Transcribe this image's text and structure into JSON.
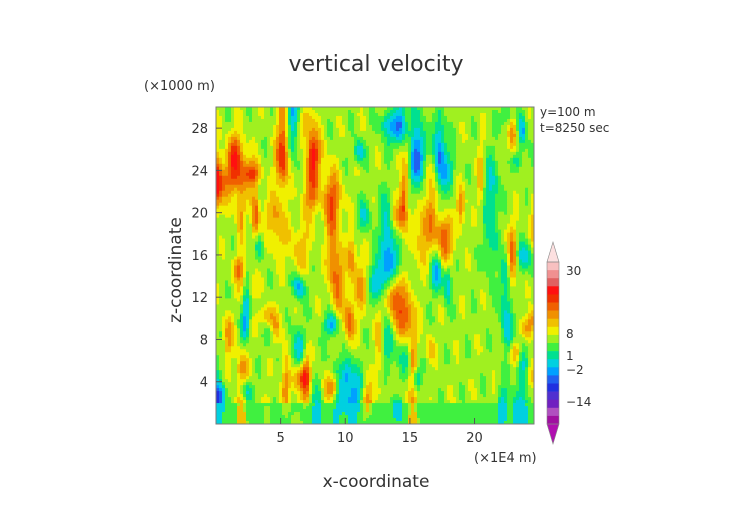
{
  "chart_data": {
    "type": "heatmap",
    "title": "vertical velocity",
    "xlabel": "x-coordinate",
    "ylabel": "z-coordinate",
    "x_unit": "(×1E4 m)",
    "y_unit": "(×1000 m)",
    "xlim": [
      0,
      24.6
    ],
    "ylim": [
      0,
      30
    ],
    "x_ticks": [
      5,
      10,
      15,
      20
    ],
    "y_ticks": [
      4,
      8,
      12,
      16,
      20,
      24,
      28
    ],
    "annotations": [
      "y=100 m",
      "t=8250 sec"
    ],
    "colorbar": {
      "labels": [
        {
          "text": "30",
          "value": 30
        },
        {
          "text": "8",
          "value": 8
        },
        {
          "text": "1",
          "value": 1
        },
        {
          "text": "−2",
          "value": -2
        },
        {
          "text": "−14",
          "value": -14
        }
      ],
      "colors": [
        "#a010a0",
        "#b050c0",
        "#7020c0",
        "#5030d0",
        "#2030e0",
        "#2060f0",
        "#00a0ff",
        "#00d0e0",
        "#00e090",
        "#40f040",
        "#a0f020",
        "#f0f000",
        "#f0c000",
        "#f09000",
        "#f06000",
        "#f03000",
        "#ff1010",
        "#e06060",
        "#f09090",
        "#f8c0c0"
      ]
    }
  }
}
